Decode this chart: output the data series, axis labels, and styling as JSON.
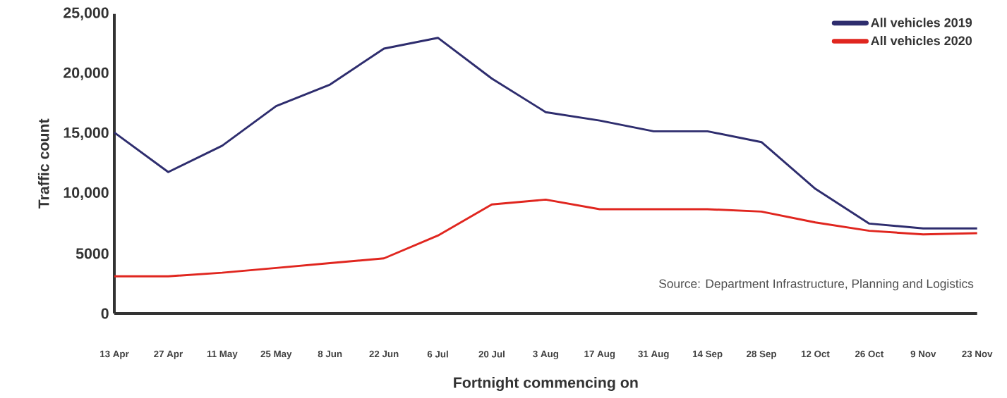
{
  "chart_data": {
    "type": "line",
    "xlabel": "Fortnight commencing on",
    "ylabel": "Traffic count",
    "categories": [
      "13 Apr",
      "27 Apr",
      "11 May",
      "25 May",
      "8 Jun",
      "22 Jun",
      "6 Jul",
      "20 Jul",
      "3 Aug",
      "17 Aug",
      "31 Aug",
      "14 Sep",
      "28 Sep",
      "12 Oct",
      "26 Oct",
      "9 Nov",
      "23 Nov"
    ],
    "series": [
      {
        "name": "All vehicles 2019",
        "color": "#2e2d6e",
        "values": [
          15100,
          11800,
          14000,
          17300,
          19100,
          22100,
          23000,
          19600,
          16800,
          16100,
          15200,
          15200,
          14300,
          10400,
          7500,
          7100,
          7100
        ]
      },
      {
        "name": "All vehicles 2020",
        "color": "#e0261f",
        "values": [
          3100,
          3100,
          3400,
          3800,
          4200,
          4600,
          6500,
          9100,
          9500,
          8700,
          8700,
          8700,
          8500,
          7600,
          6900,
          6600,
          6700
        ]
      }
    ],
    "ylim": [
      0,
      25000
    ],
    "yticks": [
      0,
      5000,
      {
        "value": 10000,
        "label": "10,000"
      },
      {
        "value": 15000,
        "label": "15,000"
      },
      {
        "value": 20000,
        "label": "20,000"
      },
      {
        "value": 25000,
        "label": "25,000"
      }
    ],
    "legend": "top right",
    "marker": "none",
    "line_style": "solid",
    "annotations": [
      "Source: Department Infrastructure, Planning and Logistics"
    ]
  }
}
